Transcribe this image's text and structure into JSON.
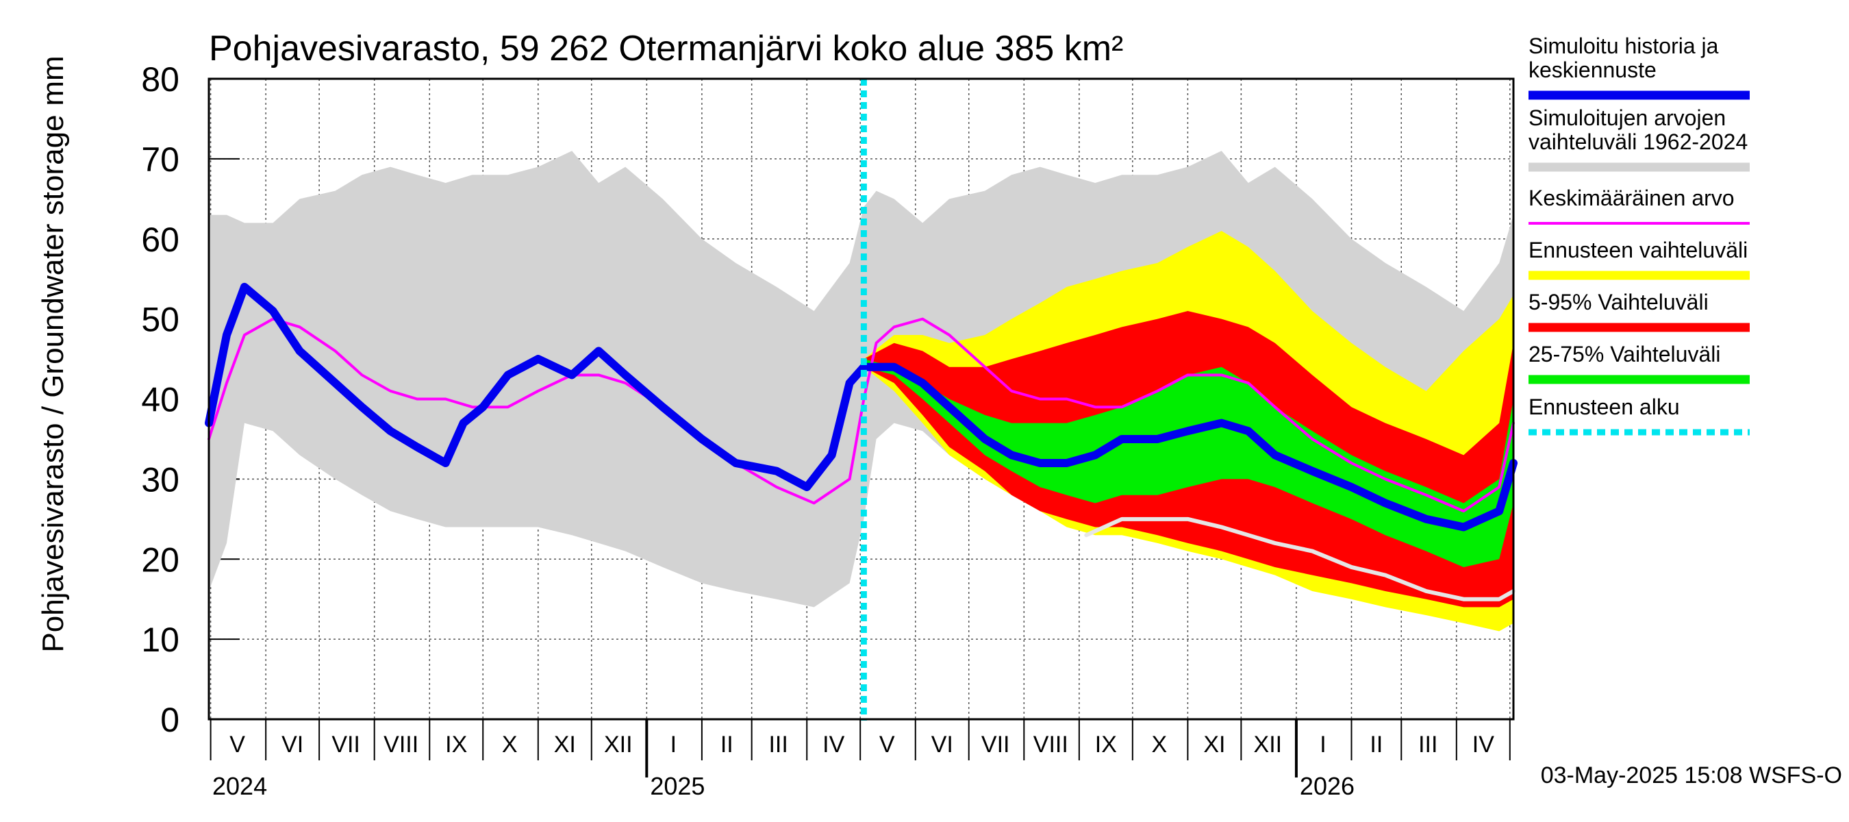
{
  "chart_data": {
    "type": "area",
    "title": "Pohjavesivarasto, 59 262 Otermanjärvi koko alue 385 km²",
    "ylabel": "Pohjavesivarasto / Groundwater storage",
    "yunit": "mm",
    "ylim": [
      0,
      80
    ],
    "yticks": [
      "0",
      "10",
      "20",
      "30",
      "40",
      "50",
      "60",
      "70",
      "80"
    ],
    "xlim": [
      "2024-04-30",
      "2026-05-03"
    ],
    "forecast_start": "2025-05-03",
    "month_labels": [
      {
        "label": "V",
        "date": "2024-05-16"
      },
      {
        "label": "VI",
        "date": "2024-06-16"
      },
      {
        "label": "VII",
        "date": "2024-07-16"
      },
      {
        "label": "VIII",
        "date": "2024-08-16"
      },
      {
        "label": "IX",
        "date": "2024-09-16"
      },
      {
        "label": "X",
        "date": "2024-10-16"
      },
      {
        "label": "XI",
        "date": "2024-11-16"
      },
      {
        "label": "XII",
        "date": "2024-12-16"
      },
      {
        "label": "I",
        "date": "2025-01-16"
      },
      {
        "label": "II",
        "date": "2025-02-15"
      },
      {
        "label": "III",
        "date": "2025-03-16"
      },
      {
        "label": "IV",
        "date": "2025-04-16"
      },
      {
        "label": "V",
        "date": "2025-05-16"
      },
      {
        "label": "VI",
        "date": "2025-06-16"
      },
      {
        "label": "VII",
        "date": "2025-07-16"
      },
      {
        "label": "VIII",
        "date": "2025-08-16"
      },
      {
        "label": "IX",
        "date": "2025-09-16"
      },
      {
        "label": "X",
        "date": "2025-10-16"
      },
      {
        "label": "XI",
        "date": "2025-11-16"
      },
      {
        "label": "XII",
        "date": "2025-12-16"
      },
      {
        "label": "I",
        "date": "2026-01-16"
      },
      {
        "label": "II",
        "date": "2026-02-15"
      },
      {
        "label": "III",
        "date": "2026-03-16"
      },
      {
        "label": "IV",
        "date": "2026-04-16"
      }
    ],
    "year_labels": [
      {
        "label": "2024",
        "date": "2024-05-01"
      },
      {
        "label": "2025",
        "date": "2025-01-01"
      },
      {
        "label": "2026",
        "date": "2026-01-01"
      }
    ],
    "series": [
      {
        "name": "Simuloitujen arvojen vaihteluväli 1962-2024",
        "color": "#d3d3d3",
        "kind": "band",
        "x": [
          "2024-04-30",
          "2024-05-10",
          "2024-05-20",
          "2024-06-05",
          "2024-06-20",
          "2024-07-10",
          "2024-07-25",
          "2024-08-10",
          "2024-08-25",
          "2024-09-10",
          "2024-09-25",
          "2024-10-15",
          "2024-11-01",
          "2024-11-20",
          "2024-12-05",
          "2024-12-20",
          "2025-01-10",
          "2025-02-01",
          "2025-02-20",
          "2025-03-15",
          "2025-04-05",
          "2025-04-25",
          "2025-05-03",
          "2025-05-10",
          "2025-05-20",
          "2025-06-05",
          "2025-06-20",
          "2025-07-10",
          "2025-07-25",
          "2025-08-10",
          "2025-08-25",
          "2025-09-10",
          "2025-09-25",
          "2025-10-15",
          "2025-11-01",
          "2025-11-20",
          "2025-12-05",
          "2025-12-20",
          "2026-01-10",
          "2026-02-01",
          "2026-02-20",
          "2026-03-15",
          "2026-04-05",
          "2026-04-25",
          "2026-05-03"
        ],
        "high": [
          63,
          63,
          62,
          62,
          65,
          66,
          68,
          69,
          68,
          67,
          68,
          68,
          69,
          71,
          67,
          69,
          65,
          60,
          57,
          54,
          51,
          57,
          64,
          66,
          65,
          62,
          65,
          66,
          68,
          69,
          68,
          67,
          68,
          68,
          69,
          71,
          67,
          69,
          65,
          60,
          57,
          54,
          51,
          57,
          63
        ],
        "low": [
          16,
          22,
          37,
          36,
          33,
          30,
          28,
          26,
          25,
          24,
          24,
          24,
          24,
          23,
          22,
          21,
          19,
          17,
          16,
          15,
          14,
          17,
          25,
          35,
          37,
          36,
          33,
          30,
          28,
          26,
          25,
          24,
          24,
          24,
          24,
          23,
          22,
          21,
          19,
          17,
          16,
          15,
          14,
          13,
          16
        ]
      },
      {
        "name": "Ennusteen vaihteluväli",
        "color": "#ffff00",
        "kind": "band",
        "x": [
          "2025-05-03",
          "2025-05-20",
          "2025-06-05",
          "2025-06-20",
          "2025-07-10",
          "2025-07-25",
          "2025-08-10",
          "2025-08-25",
          "2025-09-10",
          "2025-09-25",
          "2025-10-15",
          "2025-11-01",
          "2025-11-20",
          "2025-12-05",
          "2025-12-20",
          "2026-01-10",
          "2026-02-01",
          "2026-02-20",
          "2026-03-15",
          "2026-04-05",
          "2026-04-25",
          "2026-05-03"
        ],
        "high": [
          45,
          48,
          48,
          47,
          48,
          50,
          52,
          54,
          55,
          56,
          57,
          59,
          61,
          59,
          56,
          51,
          47,
          44,
          41,
          46,
          50,
          53
        ],
        "low": [
          44,
          41,
          37,
          33,
          30,
          28,
          26,
          24,
          23,
          23,
          22,
          21,
          20,
          19,
          18,
          16,
          15,
          14,
          13,
          12,
          11,
          12
        ]
      },
      {
        "name": "5-95% Vaihteluväli",
        "color": "#ff0000",
        "kind": "band",
        "x": [
          "2025-05-03",
          "2025-05-20",
          "2025-06-05",
          "2025-06-20",
          "2025-07-10",
          "2025-07-25",
          "2025-08-10",
          "2025-08-25",
          "2025-09-10",
          "2025-09-25",
          "2025-10-15",
          "2025-11-01",
          "2025-11-20",
          "2025-12-05",
          "2025-12-20",
          "2026-01-10",
          "2026-02-01",
          "2026-02-20",
          "2026-03-15",
          "2026-04-05",
          "2026-04-25",
          "2026-05-03"
        ],
        "high": [
          45,
          47,
          46,
          44,
          44,
          45,
          46,
          47,
          48,
          49,
          50,
          51,
          50,
          49,
          47,
          43,
          39,
          37,
          35,
          33,
          37,
          47
        ],
        "low": [
          44,
          42,
          38,
          34,
          31,
          28,
          26,
          25,
          24,
          24,
          23,
          22,
          21,
          20,
          19,
          18,
          17,
          16,
          15,
          14,
          14,
          15
        ]
      },
      {
        "name": "25-75% Vaihteluväli",
        "color": "#00ee00",
        "kind": "band",
        "x": [
          "2025-05-03",
          "2025-05-20",
          "2025-06-05",
          "2025-06-20",
          "2025-07-10",
          "2025-07-25",
          "2025-08-10",
          "2025-08-25",
          "2025-09-10",
          "2025-09-25",
          "2025-10-15",
          "2025-11-01",
          "2025-11-20",
          "2025-12-05",
          "2025-12-20",
          "2026-01-10",
          "2026-02-01",
          "2026-02-20",
          "2026-03-15",
          "2026-04-05",
          "2026-04-25",
          "2026-05-03"
        ],
        "high": [
          45,
          44,
          42,
          40,
          38,
          37,
          37,
          37,
          38,
          39,
          41,
          43,
          44,
          42,
          39,
          36,
          33,
          31,
          29,
          27,
          30,
          40
        ],
        "low": [
          44,
          43,
          40,
          37,
          33,
          31,
          29,
          28,
          27,
          28,
          28,
          29,
          30,
          30,
          29,
          27,
          25,
          23,
          21,
          19,
          20,
          27
        ]
      },
      {
        "name": "Keskimääräinen arvo",
        "color": "#ff00ff",
        "kind": "line",
        "x": [
          "2024-04-30",
          "2024-05-10",
          "2024-05-20",
          "2024-06-05",
          "2024-06-20",
          "2024-07-10",
          "2024-07-25",
          "2024-08-10",
          "2024-08-25",
          "2024-09-10",
          "2024-09-25",
          "2024-10-15",
          "2024-11-01",
          "2024-11-20",
          "2024-12-05",
          "2024-12-20",
          "2025-01-10",
          "2025-02-01",
          "2025-02-20",
          "2025-03-15",
          "2025-04-05",
          "2025-04-25",
          "2025-05-03",
          "2025-05-10",
          "2025-05-20",
          "2025-06-05",
          "2025-06-20",
          "2025-07-10",
          "2025-07-25",
          "2025-08-10",
          "2025-08-25",
          "2025-09-10",
          "2025-09-25",
          "2025-10-15",
          "2025-11-01",
          "2025-11-20",
          "2025-12-05",
          "2025-12-20",
          "2026-01-10",
          "2026-02-01",
          "2026-02-20",
          "2026-03-15",
          "2026-04-05",
          "2026-04-25",
          "2026-05-03"
        ],
        "values": [
          35,
          42,
          48,
          50,
          49,
          46,
          43,
          41,
          40,
          40,
          39,
          39,
          41,
          43,
          43,
          42,
          39,
          35,
          32,
          29,
          27,
          30,
          40,
          47,
          49,
          50,
          48,
          44,
          41,
          40,
          40,
          39,
          39,
          41,
          43,
          43,
          42,
          39,
          35,
          32,
          30,
          28,
          26,
          29,
          37
        ]
      },
      {
        "name": "Simuloitu historia ja keskiennuste",
        "color": "#0000ee",
        "kind": "line",
        "x": [
          "2024-04-30",
          "2024-05-10",
          "2024-05-20",
          "2024-06-05",
          "2024-06-20",
          "2024-07-10",
          "2024-07-25",
          "2024-08-10",
          "2024-08-25",
          "2024-09-10",
          "2024-09-20",
          "2024-10-01",
          "2024-10-15",
          "2024-11-01",
          "2024-11-20",
          "2024-12-05",
          "2024-12-20",
          "2025-01-10",
          "2025-02-01",
          "2025-02-20",
          "2025-03-15",
          "2025-04-01",
          "2025-04-15",
          "2025-04-25",
          "2025-05-03",
          "2025-05-20",
          "2025-06-05",
          "2025-06-20",
          "2025-07-10",
          "2025-07-25",
          "2025-08-10",
          "2025-08-25",
          "2025-09-10",
          "2025-09-25",
          "2025-10-15",
          "2025-11-01",
          "2025-11-20",
          "2025-12-05",
          "2025-12-20",
          "2026-01-10",
          "2026-02-01",
          "2026-02-20",
          "2026-03-15",
          "2026-04-05",
          "2026-04-25",
          "2026-05-03"
        ],
        "values": [
          37,
          48,
          54,
          51,
          46,
          42,
          39,
          36,
          34,
          32,
          37,
          39,
          43,
          45,
          43,
          46,
          43,
          39,
          35,
          32,
          31,
          29,
          33,
          42,
          44,
          44,
          42,
          39,
          35,
          33,
          32,
          32,
          33,
          35,
          35,
          36,
          37,
          36,
          33,
          31,
          29,
          27,
          25,
          24,
          26,
          32
        ]
      },
      {
        "name": "",
        "color": "#e6e6e6",
        "kind": "line",
        "x": [
          "2025-09-05",
          "2025-09-25",
          "2025-10-15",
          "2025-11-01",
          "2025-11-20",
          "2025-12-05",
          "2025-12-20",
          "2026-01-10",
          "2026-02-01",
          "2026-02-20",
          "2026-03-15",
          "2026-04-05",
          "2026-04-25",
          "2026-05-03"
        ],
        "values": [
          23,
          25,
          25,
          25,
          24,
          23,
          22,
          21,
          19,
          18,
          16,
          15,
          15,
          16
        ]
      },
      {
        "name": "Ennusteen alku",
        "color": "#00e5ee",
        "kind": "vline",
        "x": [
          "2025-05-03"
        ]
      }
    ],
    "legend": {
      "placement": "right",
      "entries": [
        {
          "label": "Simuloitu historia ja keskiennuste",
          "color": "#0000ee",
          "style": "thick"
        },
        {
          "label": "Simuloitujen arvojen vaihteluväli 1962-2024",
          "color": "#d3d3d3",
          "style": "thick"
        },
        {
          "label": "Keskimääräinen arvo",
          "color": "#ff00ff",
          "style": "thin"
        },
        {
          "label": "Ennusteen vaihteluväli",
          "color": "#ffff00",
          "style": "thick"
        },
        {
          "label": "5-95% Vaihteluväli",
          "color": "#ff0000",
          "style": "thick"
        },
        {
          "label": "25-75% Vaihteluväli",
          "color": "#00ee00",
          "style": "thick"
        },
        {
          "label": "Ennusteen alku",
          "color": "#00e5ee",
          "style": "dashed"
        }
      ]
    },
    "footer": "03-May-2025 15:08 WSFS-O",
    "grid": true
  }
}
